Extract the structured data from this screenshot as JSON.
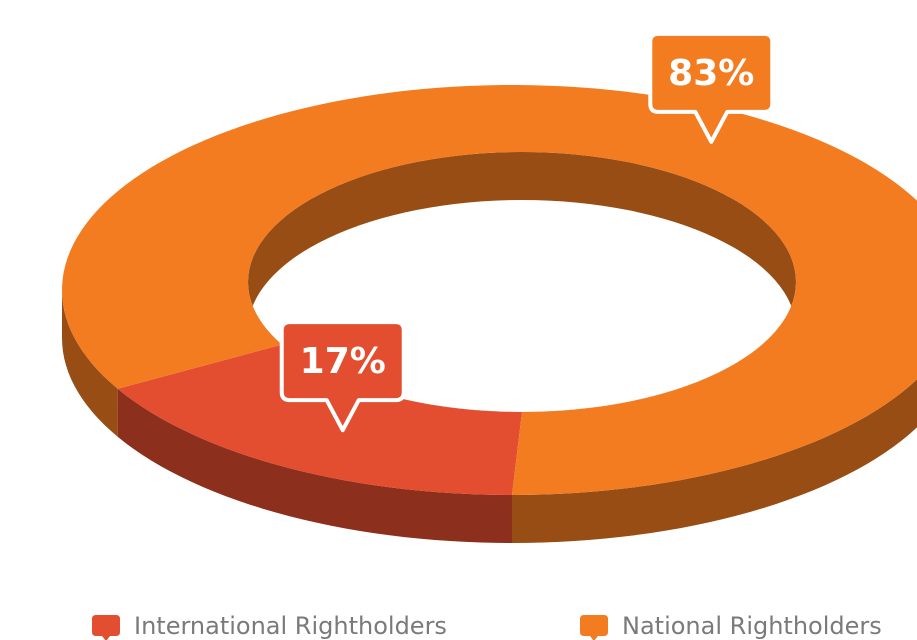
{
  "chart_data": {
    "type": "pie",
    "donut": true,
    "categories": [
      "International Rightholders",
      "National Rightholders"
    ],
    "values": [
      17,
      83
    ],
    "value_labels": [
      "17%",
      "83%"
    ],
    "colors": [
      "#e24e2f",
      "#f47c20"
    ],
    "legend": "bottom"
  }
}
